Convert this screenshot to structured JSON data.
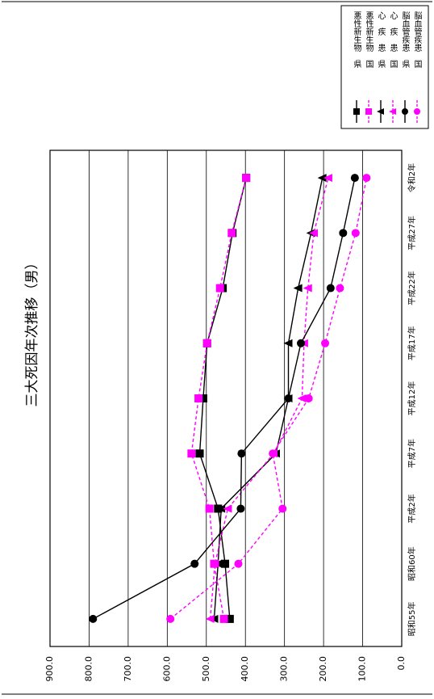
{
  "chart_data": {
    "type": "line",
    "title": "三大死因年次推移（男）",
    "categories": [
      "昭和55年",
      "昭和60年",
      "平成2年",
      "平成7年",
      "平成12年",
      "平成17年",
      "平成22年",
      "平成27年",
      "令和2年"
    ],
    "ylim": [
      0,
      900
    ],
    "yticks": [
      "0.0",
      "100.0",
      "200.0",
      "300.0",
      "400.0",
      "500.0",
      "600.0",
      "700.0",
      "800.0",
      "900.0"
    ],
    "grid": true,
    "legend_position": "top-right",
    "series": [
      {
        "name": "悪性新生物　県",
        "color": "#000000",
        "marker": "square",
        "dashed": false,
        "values": [
          440,
          452,
          470,
          517,
          508,
          498,
          458,
          433,
          398
        ]
      },
      {
        "name": "悪性新生物　国",
        "color": "#ff00ff",
        "marker": "square",
        "dashed": true,
        "values": [
          455,
          480,
          492,
          538,
          520,
          498,
          465,
          435,
          398
        ]
      },
      {
        "name": "心　疾　患　県",
        "color": "#000000",
        "marker": "triangle",
        "dashed": false,
        "values": [
          480,
          470,
          462,
          322,
          290,
          290,
          265,
          232,
          203
        ]
      },
      {
        "name": "心　疾　患　国",
        "color": "#ff00ff",
        "marker": "triangle",
        "dashed": true,
        "values": [
          490,
          478,
          445,
          328,
          255,
          250,
          240,
          225,
          188
        ]
      },
      {
        "name": "脳血管疾患　県",
        "color": "#000000",
        "marker": "circle",
        "dashed": false,
        "values": [
          790,
          530,
          412,
          410,
          290,
          258,
          182,
          150,
          120
        ]
      },
      {
        "name": "脳血管疾患　国",
        "color": "#ff00ff",
        "marker": "circle",
        "dashed": true,
        "values": [
          592,
          418,
          305,
          330,
          238,
          196,
          158,
          118,
          90
        ]
      }
    ]
  }
}
